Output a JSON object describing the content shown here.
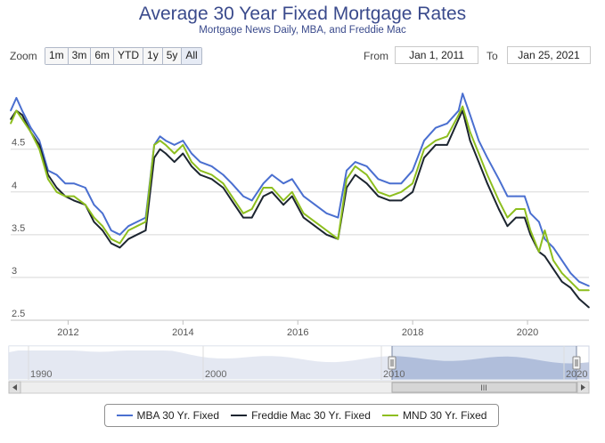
{
  "chart_data": {
    "type": "line",
    "title": "Average 30 Year Fixed Mortgage Rates",
    "subtitle": "Mortgage News Daily, MBA, and Freddie Mac",
    "xlabel": "",
    "ylabel": "",
    "xlim": [
      2011.0,
      2021.07
    ],
    "ylim": [
      2.5,
      5.1
    ],
    "y_ticks": [
      2.5,
      3,
      3.5,
      4,
      4.5
    ],
    "x_ticks": [
      2012,
      2014,
      2016,
      2018,
      2020
    ],
    "legend_position": "bottom-center",
    "series": [
      {
        "name": "MBA 30 Yr. Fixed",
        "color": "#4a6fd0",
        "points": [
          [
            2011.0,
            4.95
          ],
          [
            2011.1,
            5.1
          ],
          [
            2011.2,
            4.95
          ],
          [
            2011.35,
            4.75
          ],
          [
            2011.5,
            4.6
          ],
          [
            2011.65,
            4.25
          ],
          [
            2011.8,
            4.2
          ],
          [
            2011.95,
            4.1
          ],
          [
            2012.1,
            4.1
          ],
          [
            2012.3,
            4.05
          ],
          [
            2012.45,
            3.85
          ],
          [
            2012.6,
            3.75
          ],
          [
            2012.75,
            3.55
          ],
          [
            2012.9,
            3.5
          ],
          [
            2013.05,
            3.6
          ],
          [
            2013.2,
            3.65
          ],
          [
            2013.35,
            3.7
          ],
          [
            2013.5,
            4.55
          ],
          [
            2013.6,
            4.65
          ],
          [
            2013.7,
            4.6
          ],
          [
            2013.85,
            4.55
          ],
          [
            2014.0,
            4.6
          ],
          [
            2014.15,
            4.45
          ],
          [
            2014.3,
            4.35
          ],
          [
            2014.5,
            4.3
          ],
          [
            2014.7,
            4.2
          ],
          [
            2014.85,
            4.1
          ],
          [
            2015.05,
            3.95
          ],
          [
            2015.2,
            3.9
          ],
          [
            2015.4,
            4.1
          ],
          [
            2015.55,
            4.2
          ],
          [
            2015.75,
            4.1
          ],
          [
            2015.9,
            4.15
          ],
          [
            2016.1,
            3.95
          ],
          [
            2016.3,
            3.85
          ],
          [
            2016.5,
            3.75
          ],
          [
            2016.7,
            3.7
          ],
          [
            2016.85,
            4.25
          ],
          [
            2017.0,
            4.35
          ],
          [
            2017.2,
            4.3
          ],
          [
            2017.4,
            4.15
          ],
          [
            2017.6,
            4.1
          ],
          [
            2017.8,
            4.1
          ],
          [
            2018.0,
            4.25
          ],
          [
            2018.2,
            4.6
          ],
          [
            2018.4,
            4.75
          ],
          [
            2018.6,
            4.8
          ],
          [
            2018.8,
            4.95
          ],
          [
            2018.87,
            5.15
          ],
          [
            2019.0,
            4.9
          ],
          [
            2019.15,
            4.6
          ],
          [
            2019.3,
            4.4
          ],
          [
            2019.5,
            4.15
          ],
          [
            2019.65,
            3.95
          ],
          [
            2019.8,
            3.95
          ],
          [
            2019.95,
            3.95
          ],
          [
            2020.05,
            3.75
          ],
          [
            2020.2,
            3.65
          ],
          [
            2020.3,
            3.45
          ],
          [
            2020.45,
            3.35
          ],
          [
            2020.6,
            3.2
          ],
          [
            2020.75,
            3.05
          ],
          [
            2020.9,
            2.95
          ],
          [
            2021.07,
            2.9
          ]
        ]
      },
      {
        "name": "Freddie Mac 30 Yr. Fixed",
        "color": "#1c2530",
        "points": [
          [
            2011.0,
            4.85
          ],
          [
            2011.1,
            4.95
          ],
          [
            2011.2,
            4.9
          ],
          [
            2011.35,
            4.7
          ],
          [
            2011.5,
            4.55
          ],
          [
            2011.65,
            4.2
          ],
          [
            2011.8,
            4.05
          ],
          [
            2011.95,
            3.95
          ],
          [
            2012.1,
            3.9
          ],
          [
            2012.3,
            3.85
          ],
          [
            2012.45,
            3.65
          ],
          [
            2012.6,
            3.55
          ],
          [
            2012.75,
            3.4
          ],
          [
            2012.9,
            3.35
          ],
          [
            2013.05,
            3.45
          ],
          [
            2013.2,
            3.5
          ],
          [
            2013.35,
            3.55
          ],
          [
            2013.5,
            4.4
          ],
          [
            2013.6,
            4.5
          ],
          [
            2013.7,
            4.45
          ],
          [
            2013.85,
            4.35
          ],
          [
            2014.0,
            4.45
          ],
          [
            2014.15,
            4.3
          ],
          [
            2014.3,
            4.2
          ],
          [
            2014.5,
            4.15
          ],
          [
            2014.7,
            4.05
          ],
          [
            2014.85,
            3.9
          ],
          [
            2015.05,
            3.7
          ],
          [
            2015.2,
            3.7
          ],
          [
            2015.4,
            3.95
          ],
          [
            2015.55,
            4.0
          ],
          [
            2015.75,
            3.85
          ],
          [
            2015.9,
            3.95
          ],
          [
            2016.1,
            3.7
          ],
          [
            2016.3,
            3.6
          ],
          [
            2016.5,
            3.5
          ],
          [
            2016.7,
            3.45
          ],
          [
            2016.85,
            4.05
          ],
          [
            2017.0,
            4.2
          ],
          [
            2017.2,
            4.1
          ],
          [
            2017.4,
            3.95
          ],
          [
            2017.6,
            3.9
          ],
          [
            2017.8,
            3.9
          ],
          [
            2018.0,
            4.0
          ],
          [
            2018.2,
            4.4
          ],
          [
            2018.4,
            4.55
          ],
          [
            2018.6,
            4.55
          ],
          [
            2018.8,
            4.85
          ],
          [
            2018.87,
            4.95
          ],
          [
            2019.0,
            4.6
          ],
          [
            2019.15,
            4.35
          ],
          [
            2019.3,
            4.1
          ],
          [
            2019.5,
            3.8
          ],
          [
            2019.65,
            3.6
          ],
          [
            2019.8,
            3.7
          ],
          [
            2019.95,
            3.7
          ],
          [
            2020.05,
            3.5
          ],
          [
            2020.2,
            3.3
          ],
          [
            2020.3,
            3.25
          ],
          [
            2020.45,
            3.1
          ],
          [
            2020.6,
            2.95
          ],
          [
            2020.75,
            2.88
          ],
          [
            2020.9,
            2.75
          ],
          [
            2021.07,
            2.65
          ]
        ]
      },
      {
        "name": "MND 30 Yr. Fixed",
        "color": "#8dbe1e",
        "points": [
          [
            2011.0,
            4.8
          ],
          [
            2011.1,
            4.95
          ],
          [
            2011.2,
            4.85
          ],
          [
            2011.35,
            4.7
          ],
          [
            2011.5,
            4.5
          ],
          [
            2011.65,
            4.15
          ],
          [
            2011.8,
            4.0
          ],
          [
            2011.95,
            3.95
          ],
          [
            2012.1,
            3.95
          ],
          [
            2012.3,
            3.85
          ],
          [
            2012.45,
            3.7
          ],
          [
            2012.6,
            3.6
          ],
          [
            2012.75,
            3.45
          ],
          [
            2012.9,
            3.4
          ],
          [
            2013.05,
            3.55
          ],
          [
            2013.2,
            3.6
          ],
          [
            2013.35,
            3.65
          ],
          [
            2013.5,
            4.55
          ],
          [
            2013.6,
            4.6
          ],
          [
            2013.7,
            4.55
          ],
          [
            2013.85,
            4.45
          ],
          [
            2014.0,
            4.55
          ],
          [
            2014.15,
            4.35
          ],
          [
            2014.3,
            4.25
          ],
          [
            2014.5,
            4.2
          ],
          [
            2014.7,
            4.1
          ],
          [
            2014.85,
            3.95
          ],
          [
            2015.05,
            3.75
          ],
          [
            2015.2,
            3.8
          ],
          [
            2015.4,
            4.05
          ],
          [
            2015.55,
            4.05
          ],
          [
            2015.75,
            3.9
          ],
          [
            2015.9,
            4.0
          ],
          [
            2016.1,
            3.75
          ],
          [
            2016.3,
            3.65
          ],
          [
            2016.5,
            3.55
          ],
          [
            2016.7,
            3.45
          ],
          [
            2016.85,
            4.15
          ],
          [
            2017.0,
            4.3
          ],
          [
            2017.2,
            4.2
          ],
          [
            2017.4,
            4.0
          ],
          [
            2017.6,
            3.95
          ],
          [
            2017.8,
            4.0
          ],
          [
            2018.0,
            4.1
          ],
          [
            2018.2,
            4.5
          ],
          [
            2018.4,
            4.6
          ],
          [
            2018.6,
            4.65
          ],
          [
            2018.8,
            4.9
          ],
          [
            2018.87,
            5.0
          ],
          [
            2019.0,
            4.7
          ],
          [
            2019.15,
            4.45
          ],
          [
            2019.3,
            4.2
          ],
          [
            2019.5,
            3.9
          ],
          [
            2019.65,
            3.7
          ],
          [
            2019.8,
            3.8
          ],
          [
            2019.95,
            3.8
          ],
          [
            2020.05,
            3.55
          ],
          [
            2020.2,
            3.3
          ],
          [
            2020.3,
            3.55
          ],
          [
            2020.45,
            3.2
          ],
          [
            2020.6,
            3.05
          ],
          [
            2020.75,
            2.95
          ],
          [
            2020.9,
            2.85
          ],
          [
            2021.07,
            2.85
          ]
        ]
      }
    ]
  },
  "zoom": {
    "label": "Zoom",
    "buttons": [
      "1m",
      "3m",
      "6m",
      "YTD",
      "1y",
      "5y",
      "All"
    ],
    "active": "All"
  },
  "range": {
    "from_label": "From",
    "from_value": "Jan 1, 2011",
    "to_label": "To",
    "to_value": "Jan 25, 2021"
  },
  "navigator": {
    "ticks": [
      "1990",
      "2000",
      "2010",
      "2020"
    ],
    "scroll_thumb_label": "III"
  },
  "colors": {
    "grid": "#d8d8d8",
    "navigator_fill": "#a9b7d6",
    "navigator_mask": "#e8ecf5",
    "title": "#3a4a8c"
  }
}
